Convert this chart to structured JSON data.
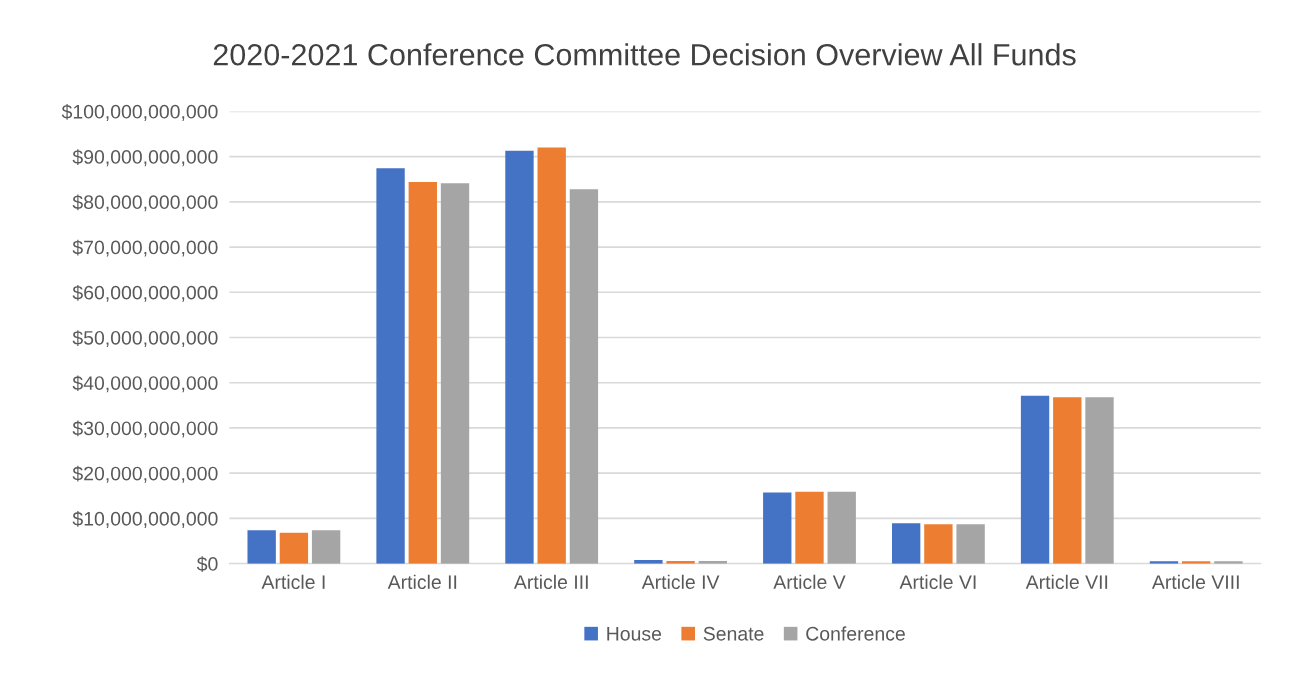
{
  "chart_data": {
    "type": "bar",
    "title": "2020-2021 Conference Committee Decision Overview All Funds",
    "categories": [
      "Article I",
      "Article II",
      "Article III",
      "Article IV",
      "Article V",
      "Article VI",
      "Article VII",
      "Article VIII"
    ],
    "series": [
      {
        "name": "House",
        "color": "#4472c4",
        "values": [
          7400000000,
          87400000000,
          91300000000,
          800000000,
          15700000000,
          8900000000,
          37100000000,
          500000000
        ]
      },
      {
        "name": "Senate",
        "color": "#ed7d31",
        "values": [
          6800000000,
          84400000000,
          92000000000,
          600000000,
          15900000000,
          8700000000,
          36800000000,
          500000000
        ]
      },
      {
        "name": "Conference",
        "color": "#a5a5a5",
        "values": [
          7400000000,
          84100000000,
          82800000000,
          600000000,
          15900000000,
          8700000000,
          36800000000,
          500000000
        ]
      }
    ],
    "ylim": [
      0,
      100000000000
    ],
    "yticks": [
      {
        "value": 0,
        "label": "$0"
      },
      {
        "value": 10000000000,
        "label": "$10,000,000,000"
      },
      {
        "value": 20000000000,
        "label": "$20,000,000,000"
      },
      {
        "value": 30000000000,
        "label": "$30,000,000,000"
      },
      {
        "value": 40000000000,
        "label": "$40,000,000,000"
      },
      {
        "value": 50000000000,
        "label": "$50,000,000,000"
      },
      {
        "value": 60000000000,
        "label": "$60,000,000,000"
      },
      {
        "value": 70000000000,
        "label": "$70,000,000,000"
      },
      {
        "value": 80000000000,
        "label": "$80,000,000,000"
      },
      {
        "value": 90000000000,
        "label": "$90,000,000,000"
      },
      {
        "value": 100000000000,
        "label": "$100,000,000,000"
      }
    ],
    "grid": "y",
    "legend": "bottom"
  }
}
